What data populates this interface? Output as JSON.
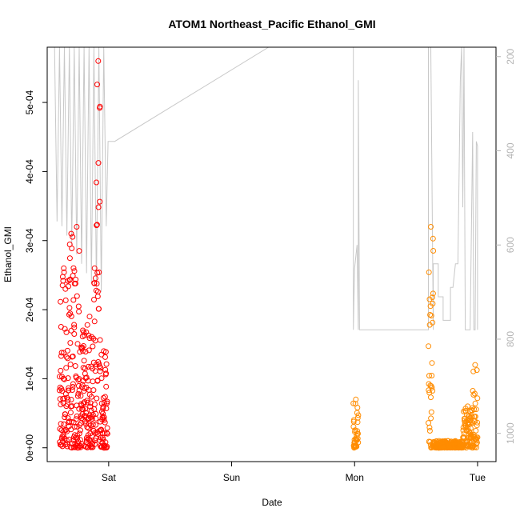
{
  "chart_data": {
    "type": "scatter",
    "title": "ATOM1 Northeast_Pacific Ethanol_GMI",
    "xlabel": "Date",
    "ylabel": "Ethanol_GMI",
    "x_ticks": [
      "Sat",
      "Sun",
      "Mon",
      "Tue"
    ],
    "x_range_days": [
      -0.5,
      3.15
    ],
    "y_ticks": [
      "0e+00",
      "1e-04",
      "2e-04",
      "3e-04",
      "4e-04",
      "5e-04"
    ],
    "y_tick_values": [
      0,
      0.0001,
      0.0002,
      0.0003,
      0.0004,
      0.0005
    ],
    "ylim": [
      -2e-05,
      0.00058
    ],
    "y2_ticks": [
      "200",
      "400",
      "600",
      "800",
      "1000"
    ],
    "y2_tick_values": [
      200,
      400,
      600,
      800,
      1000
    ],
    "y2lim": [
      1060,
      180
    ],
    "series": [
      {
        "color": "#ff0000",
        "marker": "open-circle",
        "segments": [
          {
            "x_start": -0.4,
            "x_end": -0.33,
            "y_min": 0.0,
            "y_max": 0.00026
          },
          {
            "x_start": -0.33,
            "x_end": -0.28,
            "y_min": 0.0,
            "y_max": 0.00031
          },
          {
            "x_start": -0.28,
            "x_end": -0.24,
            "y_min": 0.0,
            "y_max": 0.00032
          },
          {
            "x_start": -0.24,
            "x_end": -0.18,
            "y_min": 0.0,
            "y_max": 0.00017
          },
          {
            "x_start": -0.18,
            "x_end": -0.13,
            "y_min": 0.0,
            "y_max": 0.00019
          },
          {
            "x_start": -0.13,
            "x_end": -0.1,
            "y_min": 0.0,
            "y_max": 0.00026
          },
          {
            "x_start": -0.1,
            "x_end": -0.07,
            "y_min": 0.0,
            "y_max": 0.00056
          },
          {
            "x_start": -0.07,
            "x_end": -0.01,
            "y_min": 0.0,
            "y_max": 0.00014
          }
        ]
      },
      {
        "color": "#ff8c00",
        "marker": "open-circle",
        "segments": [
          {
            "x_start": 1.99,
            "x_end": 2.03,
            "y_min": 0.0,
            "y_max": 7e-05
          },
          {
            "x_start": 2.6,
            "x_end": 2.64,
            "y_min": 0.0,
            "y_max": 0.00032
          },
          {
            "x_start": 2.64,
            "x_end": 2.88,
            "y_min": 0.0,
            "y_max": 1e-05
          },
          {
            "x_start": 2.88,
            "x_end": 2.96,
            "y_min": 0.0,
            "y_max": 6e-05
          },
          {
            "x_start": 2.96,
            "x_end": 3.0,
            "y_min": 0.0,
            "y_max": 0.00012
          }
        ]
      }
    ],
    "overlay_line": {
      "color": "#c8c8c8",
      "axis": "right",
      "points": [
        [
          -0.44,
          180
        ],
        [
          -0.42,
          550
        ],
        [
          -0.4,
          180
        ],
        [
          -0.38,
          560
        ],
        [
          -0.36,
          180
        ],
        [
          -0.34,
          580
        ],
        [
          -0.32,
          180
        ],
        [
          -0.3,
          600
        ],
        [
          -0.28,
          180
        ],
        [
          -0.26,
          620
        ],
        [
          -0.24,
          180
        ],
        [
          -0.22,
          640
        ],
        [
          -0.2,
          180
        ],
        [
          -0.18,
          660
        ],
        [
          -0.16,
          180
        ],
        [
          -0.14,
          680
        ],
        [
          -0.12,
          180
        ],
        [
          -0.1,
          690
        ],
        [
          -0.08,
          180
        ],
        [
          -0.06,
          700
        ],
        [
          -0.04,
          180
        ],
        [
          -0.02,
          560
        ],
        [
          -0.005,
          380
        ],
        [
          0.0,
          380
        ],
        [
          0.05,
          380
        ],
        [
          1.3,
          180
        ],
        [
          1.99,
          180
        ],
        [
          1.99,
          780
        ],
        [
          2.0,
          650
        ],
        [
          2.02,
          600
        ],
        [
          2.03,
          780
        ],
        [
          2.03,
          250
        ],
        [
          2.04,
          780
        ],
        [
          2.6,
          780
        ],
        [
          2.6,
          180
        ],
        [
          2.62,
          180
        ],
        [
          2.64,
          780
        ],
        [
          2.64,
          640
        ],
        [
          2.68,
          640
        ],
        [
          2.68,
          710
        ],
        [
          2.72,
          710
        ],
        [
          2.72,
          760
        ],
        [
          2.78,
          760
        ],
        [
          2.78,
          690
        ],
        [
          2.8,
          690
        ],
        [
          2.82,
          640
        ],
        [
          2.84,
          640
        ],
        [
          2.86,
          250
        ],
        [
          2.87,
          180
        ],
        [
          2.88,
          520
        ],
        [
          2.89,
          180
        ],
        [
          2.9,
          780
        ],
        [
          2.94,
          780
        ],
        [
          2.96,
          360
        ],
        [
          2.97,
          780
        ],
        [
          2.98,
          780
        ],
        [
          2.99,
          380
        ],
        [
          3.0,
          390
        ],
        [
          3.0,
          780
        ]
      ]
    }
  }
}
